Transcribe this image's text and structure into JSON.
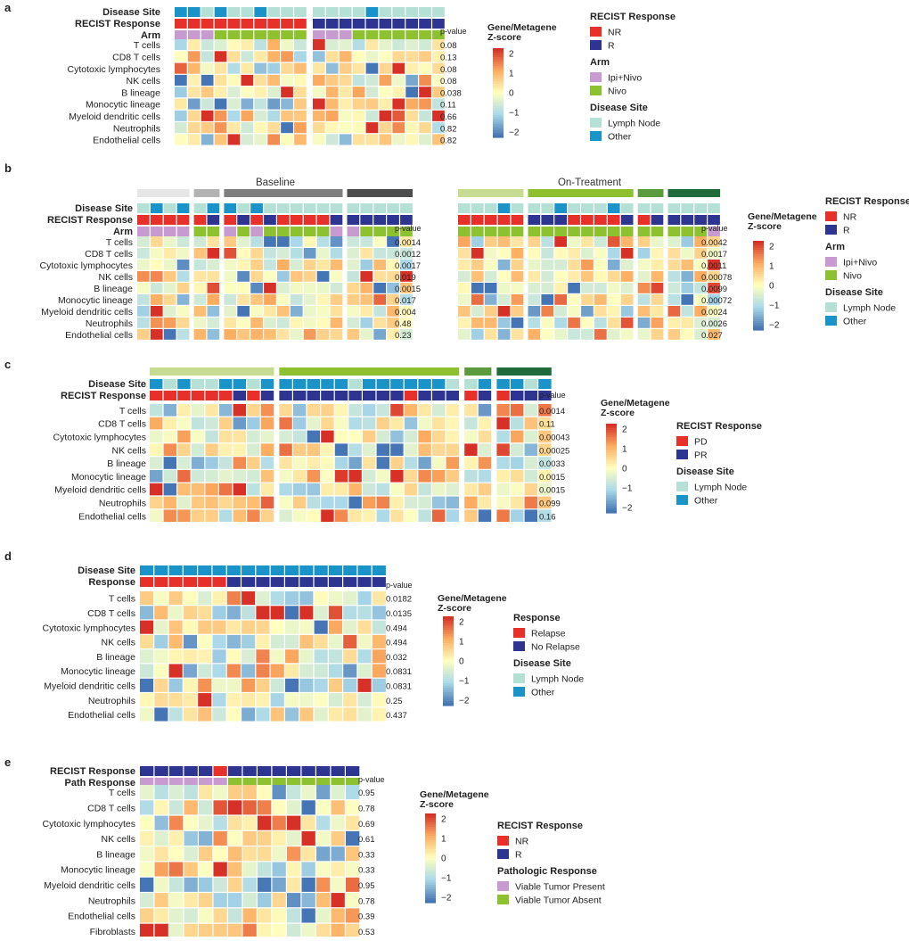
{
  "figure": {
    "cell_types_9": [
      "T cells",
      "CD8 T cells",
      "Cytotoxic lymphocytes",
      "NK cells",
      "B lineage",
      "Monocytic lineage",
      "Myeloid dendritic cells",
      "Neutrophils",
      "Endothelial cells"
    ],
    "cell_types_10": [
      "T cells",
      "CD8 T cells",
      "Cytotoxic lymphocytes",
      "NK cells",
      "B lineage",
      "Monocytic lineage",
      "Myeloid dendritic cells",
      "Neutrophils",
      "Endothelial cells",
      "Fibroblasts"
    ],
    "pvalue_label": "p-value",
    "colorbar_title_1": "Gene/Metagene",
    "colorbar_title_2": "Z-score",
    "colorbar_ticks": [
      "2",
      "1",
      "0",
      "−1",
      "−2"
    ]
  },
  "colors": {
    "NR": "#e8302a",
    "R": "#2e3590",
    "Ipi+Nivo": "#c79bd0",
    "Nivo": "#8dc12f",
    "Lymph Node": "#b5e0d6",
    "Other": "#1a93c8",
    "Relapse": "#e8302a",
    "No Relapse": "#2e3590",
    "Viable Tumor Present": "#c79bd0",
    "Viable Tumor Absent": "#8dc12f",
    "group_light": "#e6e6e6",
    "group_mid": "#b3b3b3",
    "group_dark": "#7f7f7f",
    "group_black": "#4d4d4d",
    "green_light": "#c7dc92",
    "green_mid": "#8dc12f",
    "green_dark": "#5c9a3e",
    "green_darker": "#1f6b3c"
  },
  "chart_data": [
    {
      "panel": "a",
      "type": "heatmap",
      "n_cols": 20,
      "tracks": [
        {
          "label": "Disease Site",
          "values": [
            "Other",
            "Other",
            "Lymph Node",
            "Other",
            "Lymph Node",
            "Lymph Node",
            "Other",
            "Lymph Node",
            "Lymph Node",
            "Lymph Node",
            "Lymph Node",
            "Lymph Node",
            "Lymph Node",
            "Lymph Node",
            "Other",
            "Lymph Node",
            "Lymph Node",
            "Lymph Node",
            "Lymph Node",
            "Lymph Node"
          ]
        },
        {
          "label": "RECIST Response",
          "values": [
            "NR",
            "NR",
            "NR",
            "NR",
            "NR",
            "NR",
            "NR",
            "NR",
            "NR",
            "NR",
            "R",
            "R",
            "R",
            "R",
            "R",
            "R",
            "R",
            "R",
            "R",
            "R"
          ]
        },
        {
          "label": "Arm",
          "values": [
            "Ipi+Nivo",
            "Ipi+Nivo",
            "Ipi+Nivo",
            "Nivo",
            "Nivo",
            "Nivo",
            "Nivo",
            "Nivo",
            "Nivo",
            "Nivo",
            "Ipi+Nivo",
            "Ipi+Nivo",
            "Ipi+Nivo",
            "Nivo",
            "Nivo",
            "Nivo",
            "Nivo",
            "Nivo",
            "Nivo",
            "Nivo"
          ]
        }
      ],
      "groups": [
        [
          0,
          10
        ],
        [
          10,
          20
        ]
      ],
      "rows": "cell_types_9",
      "pvalues": [
        "0.08",
        "0.13",
        "0.08",
        "0.08",
        "0.038",
        "0.11",
        "0.66",
        "0.82",
        "0.82"
      ],
      "legend": [
        {
          "title": "RECIST Response",
          "items": [
            "NR",
            "R"
          ]
        },
        {
          "title": "Arm",
          "items": [
            "Ipi+Nivo",
            "Nivo"
          ]
        },
        {
          "title": "Disease Site",
          "items": [
            "Lymph Node",
            "Other"
          ]
        }
      ],
      "seed": 11
    },
    {
      "panel": "b",
      "type": "heatmap",
      "n_cols": 39,
      "sections": [
        {
          "label": "Baseline",
          "start": 0,
          "end": 20
        },
        {
          "label": "On-Treatment",
          "start": 20,
          "end": 39
        }
      ],
      "groupbars": [
        {
          "start": 0,
          "end": 4,
          "color": "group_light"
        },
        {
          "start": 4,
          "end": 6,
          "color": "group_mid"
        },
        {
          "start": 6,
          "end": 15,
          "color": "group_dark"
        },
        {
          "start": 15,
          "end": 20,
          "color": "group_black"
        },
        {
          "start": 20,
          "end": 25,
          "color": "green_light"
        },
        {
          "start": 25,
          "end": 33,
          "color": "green_mid"
        },
        {
          "start": 33,
          "end": 35,
          "color": "green_dark"
        },
        {
          "start": 35,
          "end": 39,
          "color": "green_darker"
        }
      ],
      "tracks": [
        {
          "label": "Disease Site",
          "values": [
            "Lymph Node",
            "Other",
            "Lymph Node",
            "Other",
            "Lymph Node",
            "Other",
            "Other",
            "Lymph Node",
            "Other",
            "Lymph Node",
            "Lymph Node",
            "Lymph Node",
            "Lymph Node",
            "Lymph Node",
            "Lymph Node",
            "Lymph Node",
            "Lymph Node",
            "Lymph Node",
            "Lymph Node",
            "Lymph Node",
            "Lymph Node",
            "Lymph Node",
            "Lymph Node",
            "Other",
            "Lymph Node",
            "Lymph Node",
            "Lymph Node",
            "Other",
            "Lymph Node",
            "Lymph Node",
            "Lymph Node",
            "Other",
            "Lymph Node",
            "Lymph Node",
            "Lymph Node",
            "Lymph Node",
            "Lymph Node",
            "Lymph Node",
            "Lymph Node"
          ]
        },
        {
          "label": "RECIST Response",
          "values": [
            "NR",
            "NR",
            "NR",
            "NR",
            "NR",
            "R",
            "NR",
            "R",
            "NR",
            "R",
            "NR",
            "NR",
            "NR",
            "NR",
            "R",
            "R",
            "R",
            "R",
            "R",
            "R",
            "NR",
            "NR",
            "NR",
            "NR",
            "NR",
            "R",
            "R",
            "R",
            "NR",
            "NR",
            "NR",
            "NR",
            "R",
            "NR",
            "R",
            "R",
            "R",
            "R",
            "R"
          ]
        },
        {
          "label": "Arm",
          "values": [
            "Ipi+Nivo",
            "Ipi+Nivo",
            "Ipi+Nivo",
            "Ipi+Nivo",
            "Nivo",
            "Nivo",
            "Ipi+Nivo",
            "Nivo",
            "Ipi+Nivo",
            "Nivo",
            "Nivo",
            "Nivo",
            "Nivo",
            "Nivo",
            "Ipi+Nivo",
            "Ipi+Nivo",
            "Nivo",
            "Nivo",
            "Nivo",
            "Nivo",
            "Nivo",
            "Nivo",
            "Nivo",
            "Nivo",
            "Nivo",
            "Nivo",
            "Nivo",
            "Nivo",
            "Nivo",
            "Nivo",
            "Nivo",
            "Nivo",
            "Nivo",
            "Nivo",
            "Nivo",
            "Nivo",
            "Nivo",
            "Nivo",
            "Ipi+Nivo"
          ]
        }
      ],
      "groups": [
        [
          0,
          4
        ],
        [
          4,
          6
        ],
        [
          6,
          15
        ],
        [
          15,
          20
        ],
        [
          20,
          25
        ],
        [
          25,
          33
        ],
        [
          33,
          35
        ],
        [
          35,
          39
        ]
      ],
      "rows": "cell_types_9",
      "pvalues": [
        "0.0014",
        "0.0012",
        "0.0017",
        "0.019",
        "0.0015",
        "0.017",
        "0.004",
        "0.48",
        "0.23"
      ],
      "pvalues_2": [
        "0.0042",
        "0.0017",
        "0.0011",
        "0.00078",
        "0.0099",
        "0.00072",
        "0.0024",
        "0.0026",
        "0.027"
      ],
      "legend": [
        {
          "title": "RECIST Response",
          "items": [
            "NR",
            "R"
          ]
        },
        {
          "title": "Arm",
          "items": [
            "Ipi+Nivo",
            "Nivo"
          ]
        },
        {
          "title": "Disease Site",
          "items": [
            "Lymph Node",
            "Other"
          ]
        }
      ],
      "seed": 23
    },
    {
      "panel": "c",
      "type": "heatmap",
      "n_cols": 28,
      "groupbars": [
        {
          "start": 0,
          "end": 9,
          "color": "green_light"
        },
        {
          "start": 9,
          "end": 22,
          "color": "green_mid"
        },
        {
          "start": 22,
          "end": 24,
          "color": "green_dark"
        },
        {
          "start": 24,
          "end": 28,
          "color": "green_darker"
        }
      ],
      "tracks": [
        {
          "label": "Disease Site",
          "values": [
            "Other",
            "Lymph Node",
            "Other",
            "Lymph Node",
            "Lymph Node",
            "Other",
            "Other",
            "Lymph Node",
            "Other",
            "Other",
            "Other",
            "Other",
            "Other",
            "Other",
            "Lymph Node",
            "Other",
            "Other",
            "Other",
            "Other",
            "Other",
            "Other",
            "Lymph Node",
            "Lymph Node",
            "Other",
            "Other",
            "Other",
            "Lymph Node",
            "Other"
          ]
        },
        {
          "label": "RECIST Response",
          "values": [
            "PD",
            "PD",
            "PD",
            "PD",
            "PD",
            "PD",
            "PR",
            "PD",
            "PR",
            "PR",
            "PR",
            "PR",
            "PR",
            "PR",
            "PR",
            "PR",
            "PR",
            "PR",
            "PD",
            "PR",
            "PR",
            "PR",
            "PD",
            "PR",
            "PD",
            "PR",
            "PR",
            "PR"
          ]
        }
      ],
      "groups": [
        [
          0,
          9
        ],
        [
          9,
          22
        ],
        [
          22,
          24
        ],
        [
          24,
          28
        ]
      ],
      "rows": "cell_types_9",
      "pvalues": [
        "0.0014",
        "0.11",
        "0.00043",
        "0.00025",
        "0.0033",
        "0.0015",
        "0.0015",
        "0.099",
        "0.16"
      ],
      "legend": [
        {
          "title": "RECIST Response",
          "items": [
            "PD",
            "PR"
          ]
        },
        {
          "title": "Disease Site",
          "items": [
            "Lymph Node",
            "Other"
          ]
        }
      ],
      "seed": 37
    },
    {
      "panel": "d",
      "type": "heatmap",
      "n_cols": 17,
      "tracks": [
        {
          "label": "Disease Site",
          "values": [
            "Other",
            "Other",
            "Other",
            "Other",
            "Other",
            "Other",
            "Other",
            "Other",
            "Other",
            "Other",
            "Other",
            "Other",
            "Other",
            "Other",
            "Other",
            "Other",
            "Other"
          ]
        },
        {
          "label": "Response",
          "values": [
            "Relapse",
            "Relapse",
            "Relapse",
            "Relapse",
            "Relapse",
            "Relapse",
            "No Relapse",
            "No Relapse",
            "No Relapse",
            "No Relapse",
            "No Relapse",
            "No Relapse",
            "No Relapse",
            "No Relapse",
            "No Relapse",
            "No Relapse",
            "No Relapse"
          ]
        }
      ],
      "groups": [
        [
          0,
          17
        ]
      ],
      "rows": "cell_types_9",
      "pvalues": [
        "0.0182",
        "0.0135",
        "0.494",
        "0.494",
        "0.032",
        "0.0831",
        "0.0831",
        "0.25",
        "0.437"
      ],
      "legend": [
        {
          "title": "Response",
          "items": [
            "Relapse",
            "No Relapse"
          ]
        },
        {
          "title": "Disease Site",
          "items": [
            "Lymph Node",
            "Other"
          ]
        }
      ],
      "seed": 51
    },
    {
      "panel": "e",
      "type": "heatmap",
      "n_cols": 15,
      "tracks": [
        {
          "label": "RECIST Response",
          "values": [
            "R",
            "R",
            "R",
            "R",
            "R",
            "NR",
            "R",
            "R",
            "R",
            "R",
            "R",
            "R",
            "R",
            "R",
            "R"
          ]
        },
        {
          "label": "Path Response",
          "values": [
            "Viable Tumor Present",
            "Viable Tumor Present",
            "Viable Tumor Present",
            "Viable Tumor Present",
            "Viable Tumor Present",
            "Viable Tumor Present",
            "Viable Tumor Absent",
            "Viable Tumor Absent",
            "Viable Tumor Absent",
            "Viable Tumor Absent",
            "Viable Tumor Absent",
            "Viable Tumor Absent",
            "Viable Tumor Absent",
            "Viable Tumor Absent",
            "Viable Tumor Absent"
          ]
        }
      ],
      "groups": [
        [
          0,
          15
        ]
      ],
      "rows": "cell_types_10",
      "pvalues": [
        "0.95",
        "0.78",
        "0.69",
        "0.61",
        "0.33",
        "0.33",
        "0.95",
        "0.78",
        "0.39",
        "0.53"
      ],
      "legend": [
        {
          "title": "RECIST Response",
          "items": [
            "NR",
            "R"
          ]
        },
        {
          "title": "Pathologic Response",
          "items": [
            "Viable Tumor Present",
            "Viable Tumor Absent"
          ]
        }
      ],
      "seed": 67
    }
  ]
}
